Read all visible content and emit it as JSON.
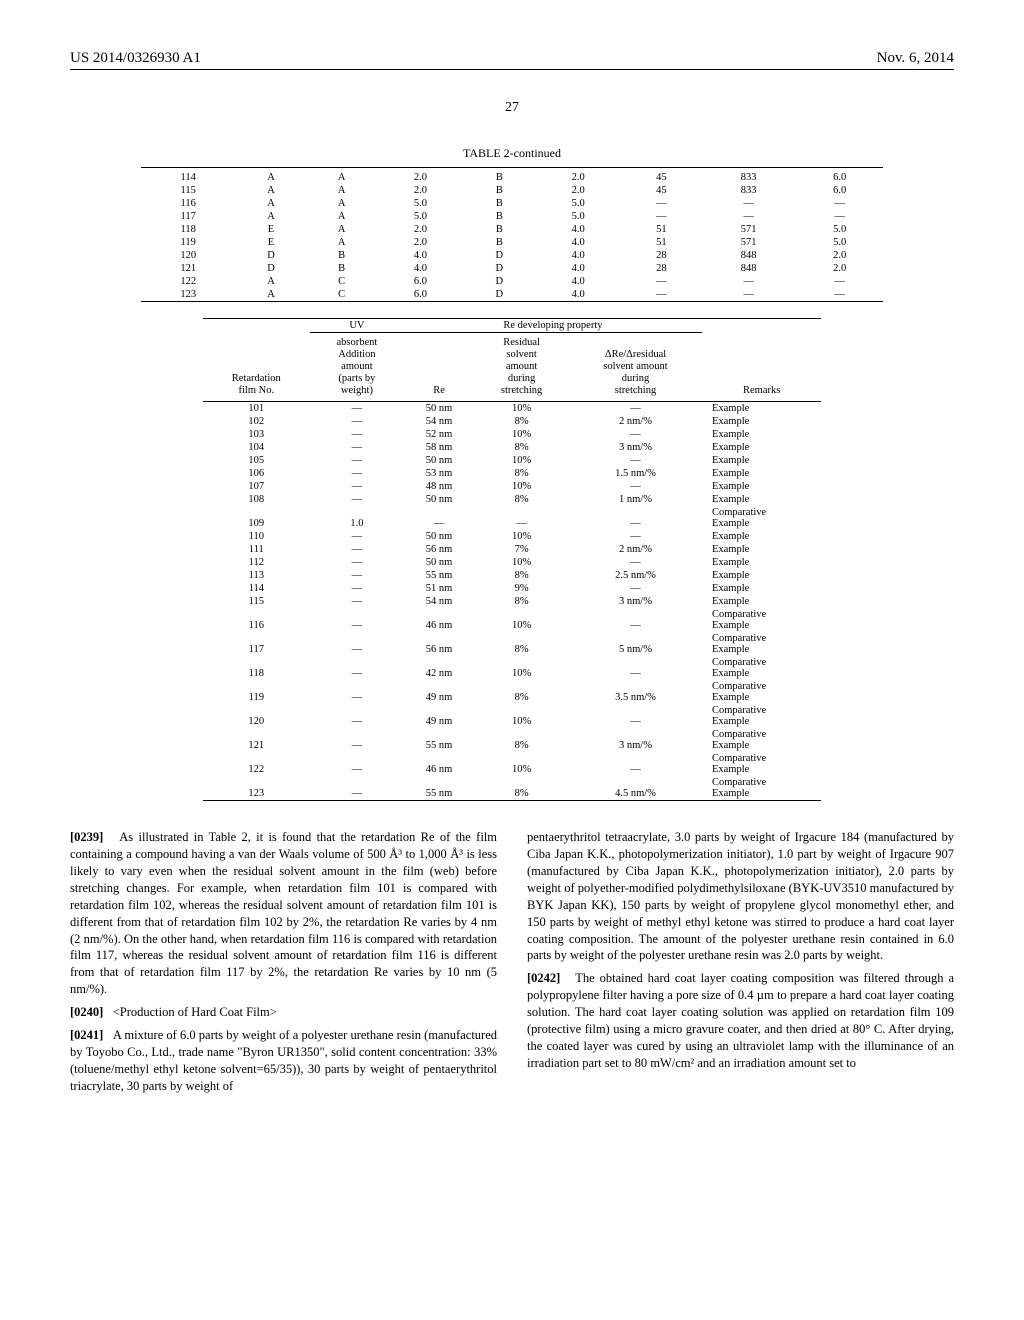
{
  "header": {
    "patent_no": "US 2014/0326930 A1",
    "page_center": "27",
    "pub_date": "Nov. 6, 2014"
  },
  "tableA": {
    "caption": "TABLE 2-continued",
    "rows": [
      [
        "114",
        "A",
        "A",
        "2.0",
        "B",
        "2.0",
        "45",
        "833",
        "6.0"
      ],
      [
        "115",
        "A",
        "A",
        "2.0",
        "B",
        "2.0",
        "45",
        "833",
        "6.0"
      ],
      [
        "116",
        "A",
        "A",
        "5.0",
        "B",
        "5.0",
        "—",
        "—",
        "—"
      ],
      [
        "117",
        "A",
        "A",
        "5.0",
        "B",
        "5.0",
        "—",
        "—",
        "—"
      ],
      [
        "118",
        "E",
        "A",
        "2.0",
        "B",
        "4.0",
        "51",
        "571",
        "5.0"
      ],
      [
        "119",
        "E",
        "A",
        "2.0",
        "B",
        "4.0",
        "51",
        "571",
        "5.0"
      ],
      [
        "120",
        "D",
        "B",
        "4.0",
        "D",
        "4.0",
        "28",
        "848",
        "2.0"
      ],
      [
        "121",
        "D",
        "B",
        "4.0",
        "D",
        "4.0",
        "28",
        "848",
        "2.0"
      ],
      [
        "122",
        "A",
        "C",
        "6.0",
        "D",
        "4.0",
        "—",
        "—",
        "—"
      ],
      [
        "123",
        "A",
        "C",
        "6.0",
        "D",
        "4.0",
        "—",
        "—",
        "—"
      ]
    ]
  },
  "tableB": {
    "spanner_uv": "UV",
    "spanner_re": "Re developing property",
    "header": {
      "c0": "Retardation\nfilm No.",
      "c1": "absorbent\nAddition\namount\n(parts by\nweight)",
      "c2": "Re",
      "c3": "Residual\nsolvent\namount\nduring\nstretching",
      "c4": "ΔRe/Δresidual\nsolvent amount\nduring\nstretching",
      "c5": "Remarks"
    },
    "rows": [
      [
        "101",
        "—",
        "50 nm",
        "10%",
        "—",
        "Example"
      ],
      [
        "102",
        "—",
        "54 nm",
        "8%",
        "2 nm/%",
        "Example"
      ],
      [
        "103",
        "—",
        "52 nm",
        "10%",
        "—",
        "Example"
      ],
      [
        "104",
        "—",
        "58 nm",
        "8%",
        "3 nm/%",
        "Example"
      ],
      [
        "105",
        "—",
        "50 nm",
        "10%",
        "—",
        "Example"
      ],
      [
        "106",
        "—",
        "53 nm",
        "8%",
        "1.5 nm/%",
        "Example"
      ],
      [
        "107",
        "—",
        "48 nm",
        "10%",
        "—",
        "Example"
      ],
      [
        "108",
        "—",
        "50 nm",
        "8%",
        "1 nm/%",
        "Example"
      ],
      [
        "109",
        "1.0",
        "—",
        "—",
        "—",
        "Comparative\nExample"
      ],
      [
        "110",
        "—",
        "50 nm",
        "10%",
        "—",
        "Example"
      ],
      [
        "111",
        "—",
        "56 nm",
        "7%",
        "2 nm/%",
        "Example"
      ],
      [
        "112",
        "—",
        "50 nm",
        "10%",
        "—",
        "Example"
      ],
      [
        "113",
        "—",
        "55 nm",
        "8%",
        "2.5 nm/%",
        "Example"
      ],
      [
        "114",
        "—",
        "51 nm",
        "9%",
        "—",
        "Example"
      ],
      [
        "115",
        "—",
        "54 nm",
        "8%",
        "3 nm/%",
        "Example"
      ],
      [
        "116",
        "—",
        "46 nm",
        "10%",
        "—",
        "Comparative\nExample"
      ],
      [
        "117",
        "—",
        "56 nm",
        "8%",
        "5 nm/%",
        "Comparative\nExample"
      ],
      [
        "118",
        "—",
        "42 nm",
        "10%",
        "—",
        "Comparative\nExample"
      ],
      [
        "119",
        "—",
        "49 nm",
        "8%",
        "3.5 nm/%",
        "Comparative\nExample"
      ],
      [
        "120",
        "—",
        "49 nm",
        "10%",
        "—",
        "Comparative\nExample"
      ],
      [
        "121",
        "—",
        "55 nm",
        "8%",
        "3 nm/%",
        "Comparative\nExample"
      ],
      [
        "122",
        "—",
        "46 nm",
        "10%",
        "—",
        "Comparative\nExample"
      ],
      [
        "123",
        "—",
        "55 nm",
        "8%",
        "4.5 nm/%",
        "Comparative\nExample"
      ]
    ]
  },
  "body": {
    "p0239_label": "[0239]",
    "p0239": "As illustrated in Table 2, it is found that the retardation Re of the film containing a compound having a van der Waals volume of 500 Å³ to 1,000 Å³ is less likely to vary even when the residual solvent amount in the film (web) before stretching changes. For example, when retardation film 101 is compared with retardation film 102, whereas the residual solvent amount of retardation film 101 is different from that of retardation film 102 by 2%, the retardation Re varies by 4 nm (2 nm/%). On the other hand, when retardation film 116 is compared with retardation film 117, whereas the residual solvent amount of retardation film 116 is different from that of retardation film 117 by 2%, the retardation Re varies by 10 nm (5 nm/%).",
    "p0240_label": "[0240]",
    "p0240": "<Production of Hard Coat Film>",
    "p0241_label": "[0241]",
    "p0241": "A mixture of 6.0 parts by weight of a polyester urethane resin (manufactured by Toyobo Co., Ltd., trade name \"Byron UR1350\", solid content concentration: 33% (toluene/methyl ethyl ketone solvent=65/35)), 30 parts by weight of pentaerythritol triacrylate, 30 parts by weight of",
    "p0241b": "pentaerythritol tetraacrylate, 3.0 parts by weight of Irgacure 184 (manufactured by Ciba Japan K.K., photopolymerization initiator), 1.0 part by weight of Irgacure 907 (manufactured by Ciba Japan K.K., photopolymerization initiator), 2.0 parts by weight of polyether-modified polydimethylsiloxane (BYK-UV3510 manufactured by BYK Japan KK), 150 parts by weight of propylene glycol monomethyl ether, and 150 parts by weight of methyl ethyl ketone was stirred to produce a hard coat layer coating composition. The amount of the polyester urethane resin contained in 6.0 parts by weight of the polyester urethane resin was 2.0 parts by weight.",
    "p0242_label": "[0242]",
    "p0242": "The obtained hard coat layer coating composition was filtered through a polypropylene filter having a pore size of 0.4 µm to prepare a hard coat layer coating solution. The hard coat layer coating solution was applied on retardation film 109 (protective film) using a micro gravure coater, and then dried at 80° C. After drying, the coated layer was cured by using an ultraviolet lamp with the illuminance of an irradiation part set to 80 mW/cm² and an irradiation amount set to"
  }
}
